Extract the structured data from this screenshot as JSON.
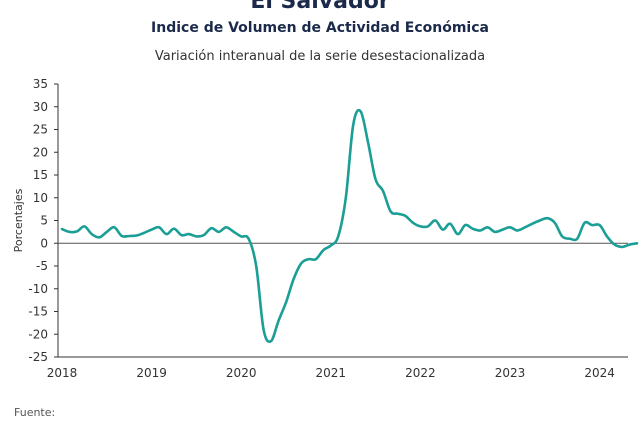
{
  "header": {
    "title": "El Salvador",
    "subtitle": "Indice de Volumen de  Actividad Económica",
    "description": "Variación interanual de la serie desestacionalizada"
  },
  "footer": {
    "source_label": "Fuente:"
  },
  "colors": {
    "series": "#1a9e96",
    "zero_line": "#555555",
    "axis": "#333333",
    "title": "#1b2a4a"
  },
  "chart_data": {
    "type": "line",
    "title": "El Salvador",
    "subtitle": "Indice de Volumen de  Actividad Económica",
    "xlabel": "",
    "ylabel": "Porcentajes",
    "ylim": [
      -25,
      35
    ],
    "y_ticks": [
      35,
      30,
      25,
      20,
      15,
      10,
      5,
      0,
      -5,
      -10,
      -15,
      -20,
      -25
    ],
    "xlim": [
      2018,
      2024.45
    ],
    "x_ticks": [
      2018,
      2019,
      2020,
      2021,
      2022,
      2023,
      2024
    ],
    "x_tick_labels": [
      "2018",
      "2019",
      "2020",
      "2021",
      "2022",
      "2023",
      "2024"
    ],
    "grid": false,
    "series": [
      {
        "values": [
          [
            2018.0,
            3.1
          ],
          [
            2018.083,
            2.5
          ],
          [
            2018.167,
            2.6
          ],
          [
            2018.25,
            3.7
          ],
          [
            2018.333,
            2.0
          ],
          [
            2018.417,
            1.3
          ],
          [
            2018.5,
            2.5
          ],
          [
            2018.583,
            3.5
          ],
          [
            2018.667,
            1.6
          ],
          [
            2018.75,
            1.6
          ],
          [
            2018.833,
            1.7
          ],
          [
            2018.917,
            2.3
          ],
          [
            2019.0,
            3.0
          ],
          [
            2019.083,
            3.5
          ],
          [
            2019.167,
            2.0
          ],
          [
            2019.25,
            3.2
          ],
          [
            2019.333,
            1.8
          ],
          [
            2019.417,
            2.0
          ],
          [
            2019.5,
            1.5
          ],
          [
            2019.583,
            1.8
          ],
          [
            2019.667,
            3.3
          ],
          [
            2019.75,
            2.5
          ],
          [
            2019.833,
            3.5
          ],
          [
            2019.917,
            2.5
          ],
          [
            2020.0,
            1.5
          ],
          [
            2020.083,
            1.0
          ],
          [
            2020.167,
            -5.0
          ],
          [
            2020.25,
            -19.0
          ],
          [
            2020.333,
            -21.5
          ],
          [
            2020.417,
            -17.0
          ],
          [
            2020.5,
            -13.0
          ],
          [
            2020.583,
            -8.0
          ],
          [
            2020.667,
            -4.5
          ],
          [
            2020.75,
            -3.5
          ],
          [
            2020.833,
            -3.5
          ],
          [
            2020.917,
            -1.5
          ],
          [
            2021.0,
            -0.5
          ],
          [
            2021.083,
            1.5
          ],
          [
            2021.167,
            10.0
          ],
          [
            2021.25,
            26.0
          ],
          [
            2021.333,
            29.0
          ],
          [
            2021.417,
            22.0
          ],
          [
            2021.5,
            14.0
          ],
          [
            2021.583,
            11.5
          ],
          [
            2021.667,
            7.0
          ],
          [
            2021.75,
            6.5
          ],
          [
            2021.833,
            6.0
          ],
          [
            2021.917,
            4.5
          ],
          [
            2022.0,
            3.7
          ],
          [
            2022.083,
            3.7
          ],
          [
            2022.167,
            5.0
          ],
          [
            2022.25,
            3.0
          ],
          [
            2022.333,
            4.3
          ],
          [
            2022.417,
            2.0
          ],
          [
            2022.5,
            4.0
          ],
          [
            2022.583,
            3.2
          ],
          [
            2022.667,
            2.8
          ],
          [
            2022.75,
            3.5
          ],
          [
            2022.833,
            2.5
          ],
          [
            2022.917,
            3.0
          ],
          [
            2023.0,
            3.5
          ],
          [
            2023.083,
            2.8
          ],
          [
            2023.167,
            3.5
          ],
          [
            2023.25,
            4.3
          ],
          [
            2023.333,
            5.0
          ],
          [
            2023.417,
            5.5
          ],
          [
            2023.5,
            4.5
          ],
          [
            2023.583,
            1.5
          ],
          [
            2023.667,
            1.0
          ],
          [
            2023.75,
            1.0
          ],
          [
            2023.833,
            4.5
          ],
          [
            2023.917,
            4.0
          ],
          [
            2024.0,
            4.0
          ],
          [
            2024.083,
            1.5
          ],
          [
            2024.167,
            -0.3
          ],
          [
            2024.25,
            -0.8
          ],
          [
            2024.333,
            -0.3
          ],
          [
            2024.417,
            0.0
          ]
        ]
      }
    ]
  }
}
